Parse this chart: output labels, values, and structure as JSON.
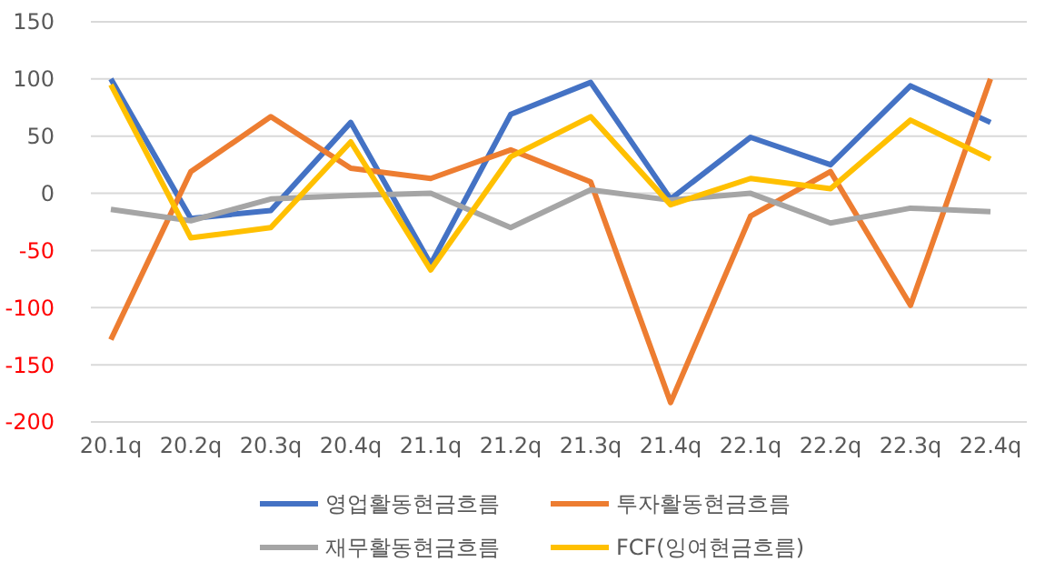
{
  "chart_data": {
    "type": "line",
    "categories": [
      "20.1q",
      "20.2q",
      "20.3q",
      "20.4q",
      "21.1q",
      "21.2q",
      "21.3q",
      "21.4q",
      "22.1q",
      "22.2q",
      "22.3q",
      "22.4q"
    ],
    "series": [
      {
        "name": "영업활동현금흐름",
        "color": "#4472c4",
        "values": [
          100,
          -22,
          -15,
          62,
          -62,
          69,
          97,
          -5,
          49,
          25,
          94,
          62
        ]
      },
      {
        "name": "투자활동현금흐름",
        "color": "#ed7d31",
        "values": [
          -128,
          19,
          67,
          22,
          13,
          38,
          10,
          -183,
          -20,
          19,
          -98,
          100
        ]
      },
      {
        "name": "재무활동현금흐름",
        "color": "#a5a5a5",
        "values": [
          -14,
          -24,
          -5,
          -2,
          0,
          -30,
          3,
          -6,
          0,
          -26,
          -13,
          -16
        ]
      },
      {
        "name": "FCF(잉여현금흐름)",
        "color": "#ffc000",
        "values": [
          95,
          -39,
          -30,
          45,
          -67,
          32,
          67,
          -10,
          13,
          4,
          64,
          30
        ]
      }
    ],
    "ylim": [
      -200,
      150
    ],
    "yticks": [
      -200,
      -150,
      -100,
      -50,
      0,
      50,
      100,
      150
    ],
    "grid": "y",
    "legend": "bottom",
    "marker": "none",
    "line_style": "solid"
  }
}
